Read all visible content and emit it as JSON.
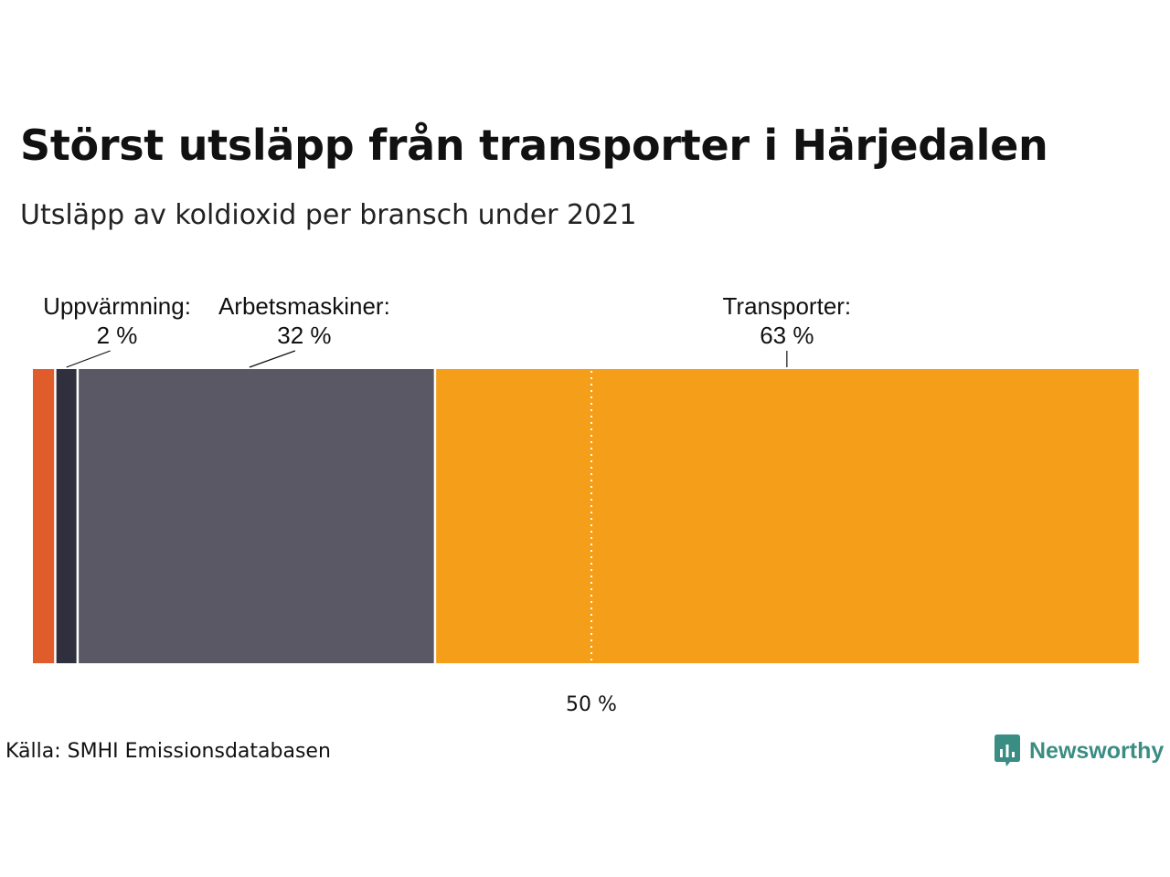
{
  "title": "Störst utsläpp från transporter i Härjedalen",
  "subtitle": "Utsläpp av koldioxid per bransch under 2021",
  "source": "Källa: SMHI Emissionsdatabasen",
  "brand": {
    "name": "Newsworthy",
    "color": "#3a8d82",
    "icon": "newsworthy-chat-bars-icon"
  },
  "chart_data": {
    "type": "bar",
    "orientation": "horizontal-stacked-100",
    "series": [
      {
        "name": "",
        "value": 2,
        "color": "#e05c2a"
      },
      {
        "name": "Uppvärmning",
        "value": 2,
        "label": "2 %",
        "color": "#302f3e"
      },
      {
        "name": "Arbetsmaskiner",
        "value": 32,
        "label": "32 %",
        "color": "#5b5866"
      },
      {
        "name": "Transporter",
        "value": 63,
        "label": "63 %",
        "color": "#f59e1a"
      }
    ],
    "total": 100,
    "reference_line": {
      "value": 50,
      "label": "50 %",
      "style": "dotted"
    },
    "xlim": [
      0,
      100
    ]
  }
}
